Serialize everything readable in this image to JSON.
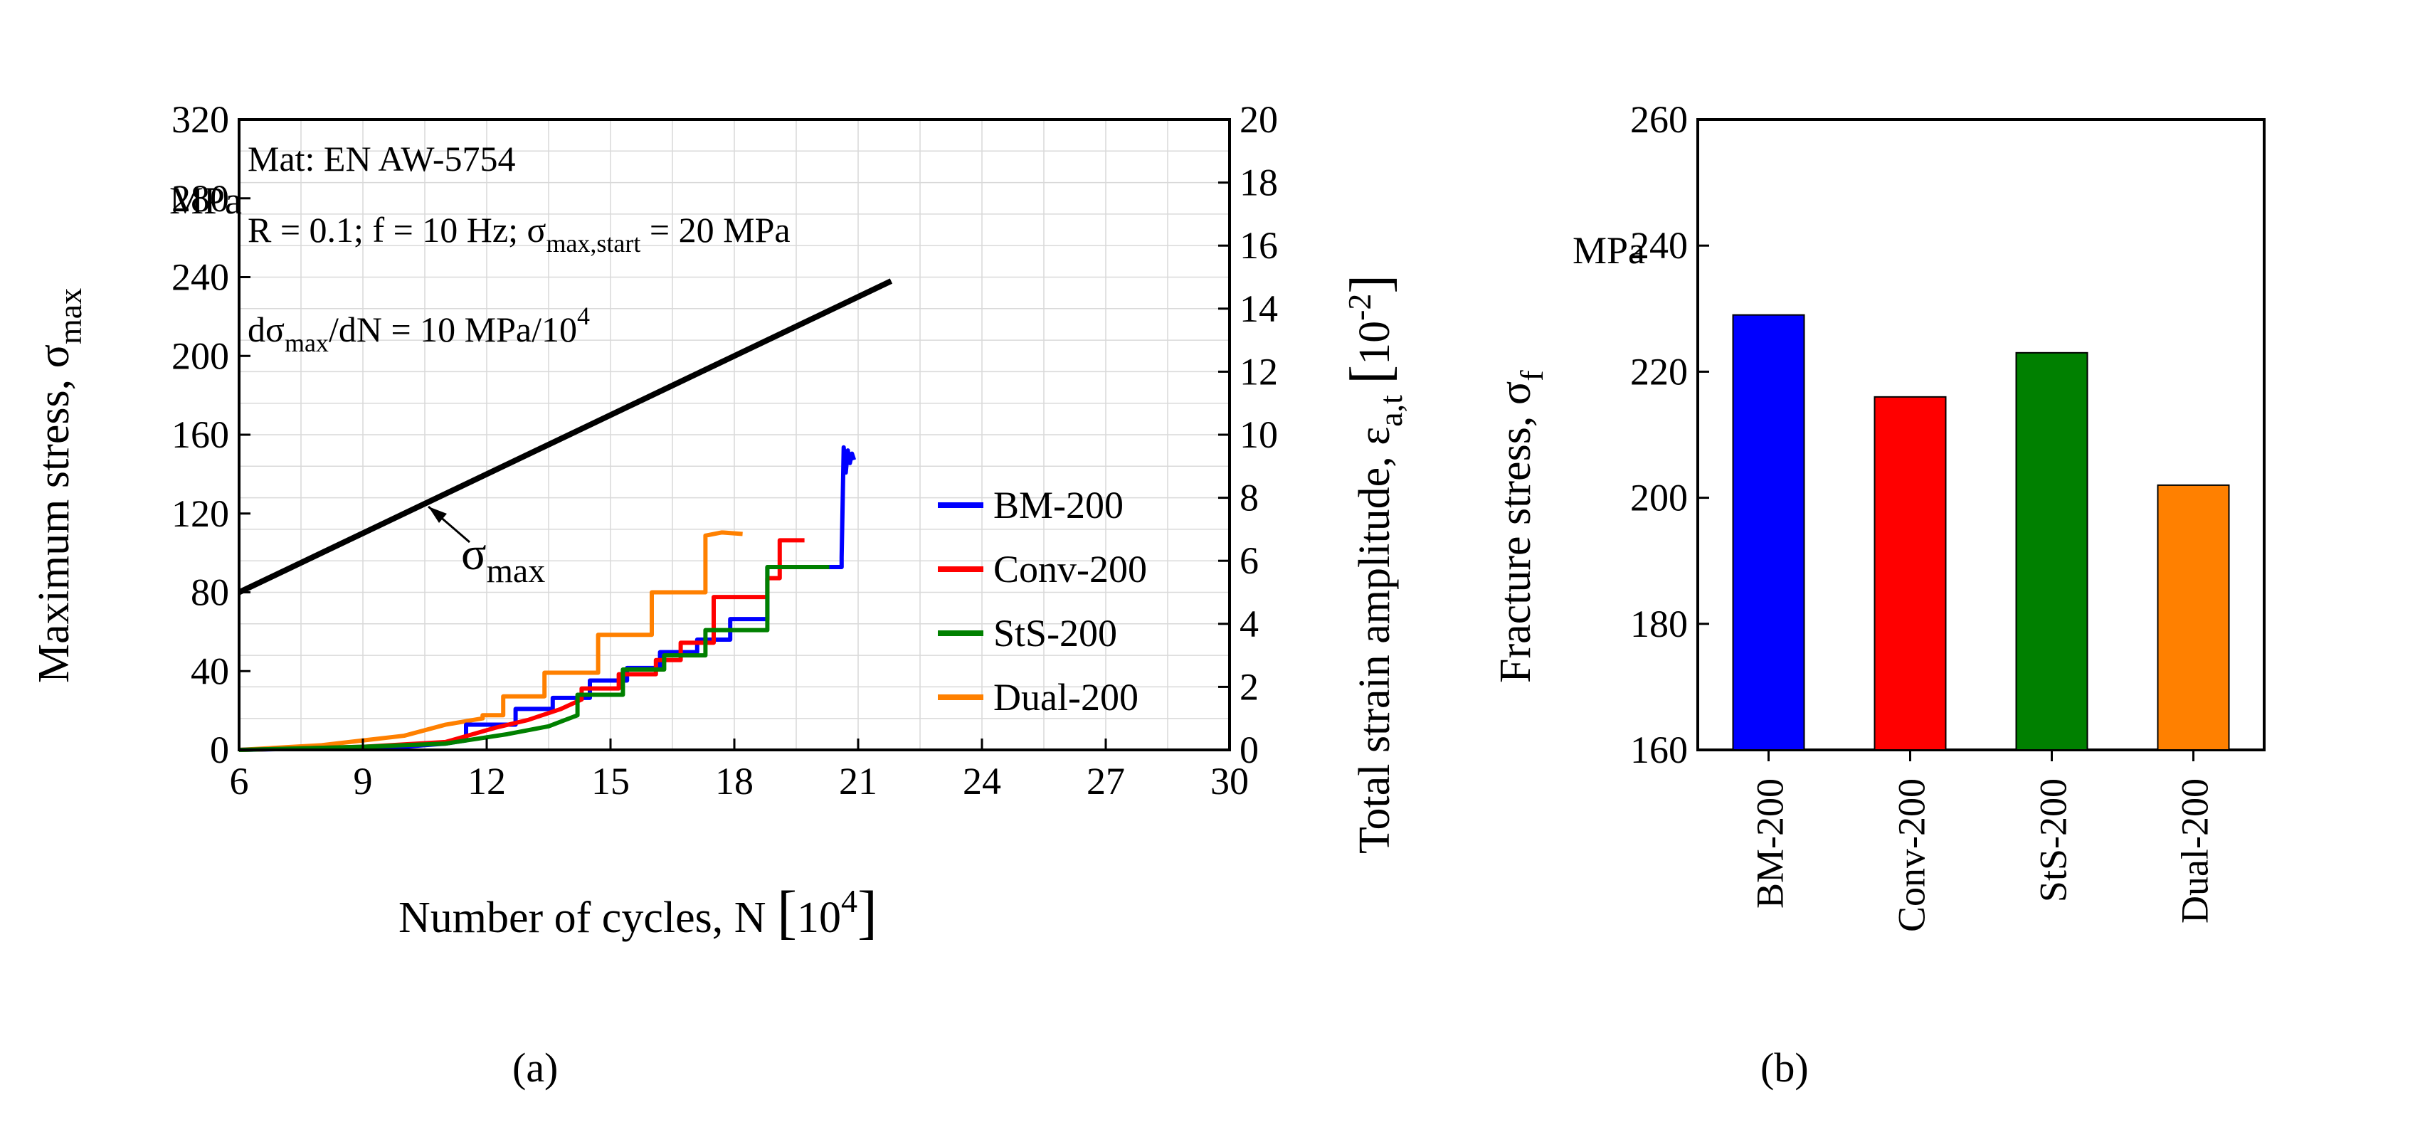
{
  "chart_data": [
    {
      "type": "line",
      "panel": "a",
      "panel_label": "(a)",
      "title": "",
      "xlabel": "Number of cycles, N [10^4]",
      "ylabel_left": "Maximum stress, σmax",
      "ylabel_left_unit": "MPa",
      "ylabel_right": "Total strain amplitude, εa,t [10^-2]",
      "grid": true,
      "xlim": [
        6,
        30
      ],
      "ylim_left": [
        0,
        320
      ],
      "ylim_right": [
        0,
        20
      ],
      "xticks": [
        "6",
        "9",
        "12",
        "15",
        "18",
        "21",
        "24",
        "27",
        "30"
      ],
      "yticks_left": [
        "0",
        "40",
        "80",
        "120",
        "160",
        "200",
        "240",
        "280",
        "320"
      ],
      "yticks_right": [
        "0",
        "2",
        "4",
        "6",
        "8",
        "10",
        "12",
        "14",
        "16",
        "18",
        "20"
      ],
      "annotations": {
        "material": "Mat: EN AW-5754",
        "params_prefix": "R = 0.1; f = 10 Hz; ",
        "sigma": "σ",
        "sub_max_start": "max,start",
        "params_suffix": " = 20 MPa",
        "rate_d": "dσ",
        "sub_max": "max",
        "rate_mid": "/dN = 10 MPa/10",
        "rate_exp": "4",
        "curve_label": "σ",
        "curve_label_sub": "max"
      },
      "axis_text": {
        "yl_main": "Maximum stress, σ",
        "yl_sub": "max",
        "unit": "MPa",
        "x_main": "Number of cycles, N ",
        "x_10": "10",
        "x_exp": "4",
        "yr_main": "Total strain amplitude, ε",
        "yr_sub": "a,t",
        "yr_10": "10",
        "yr_exp": "-2"
      },
      "sigma_max_line": {
        "name": "σmax",
        "axis": "left",
        "x": [
          6,
          21.8
        ],
        "y": [
          80,
          238
        ],
        "color": "#000000"
      },
      "series": [
        {
          "name": "BM-200",
          "axis": "right",
          "color": "#0000ff",
          "x": [
            6,
            8,
            10,
            11,
            11.5,
            11.5,
            12.7,
            12.7,
            13.6,
            13.6,
            14.5,
            14.5,
            15.4,
            15.4,
            16.2,
            16.2,
            17.1,
            17.1,
            17.9,
            17.9,
            18.8,
            18.8,
            20.6,
            20.6,
            20.65,
            20.7,
            20.75,
            20.8,
            20.85,
            20.9
          ],
          "y": [
            0,
            0.05,
            0.1,
            0.2,
            0.3,
            0.8,
            0.8,
            1.3,
            1.3,
            1.65,
            1.65,
            2.2,
            2.2,
            2.6,
            2.6,
            3.1,
            3.1,
            3.5,
            3.5,
            4.15,
            4.15,
            5.8,
            5.8,
            6.1,
            9.6,
            8.8,
            9.5,
            9.1,
            9.4,
            9.2
          ]
        },
        {
          "name": "Conv-200",
          "axis": "right",
          "color": "#ff0000",
          "x": [
            6,
            9,
            11,
            12.2,
            13,
            13.8,
            14.3,
            14.3,
            15.2,
            15.2,
            16.1,
            16.1,
            16.7,
            16.7,
            17.5,
            17.5,
            18.8,
            18.8,
            19.1,
            19.1,
            19.7
          ],
          "y": [
            0,
            0.1,
            0.25,
            0.7,
            0.95,
            1.3,
            1.6,
            1.95,
            1.95,
            2.4,
            2.4,
            2.85,
            2.85,
            3.4,
            3.4,
            4.85,
            4.85,
            5.45,
            5.45,
            6.65,
            6.65
          ]
        },
        {
          "name": "StS-200",
          "axis": "right",
          "color": "#008000",
          "x": [
            6,
            9,
            11,
            12.5,
            13.5,
            14.2,
            14.2,
            15.3,
            15.3,
            16.3,
            16.3,
            17.3,
            17.3,
            18.8,
            18.8,
            20.3
          ],
          "y": [
            0,
            0.1,
            0.2,
            0.5,
            0.75,
            1.1,
            1.75,
            1.75,
            2.55,
            2.55,
            3.0,
            3.0,
            3.8,
            3.8,
            5.8,
            5.8
          ]
        },
        {
          "name": "Dual-200",
          "axis": "right",
          "color": "#ff8000",
          "x": [
            6,
            8,
            10,
            11,
            11.9,
            11.9,
            12.4,
            12.4,
            13.4,
            13.4,
            14.7,
            14.7,
            16.0,
            16.0,
            17.3,
            17.3,
            17.7,
            18.2
          ],
          "y": [
            0,
            0.15,
            0.45,
            0.8,
            1.0,
            1.1,
            1.1,
            1.7,
            1.7,
            2.45,
            2.45,
            3.65,
            3.65,
            5.0,
            5.0,
            6.8,
            6.9,
            6.85
          ]
        }
      ]
    },
    {
      "type": "bar",
      "panel": "b",
      "panel_label": "(b)",
      "ylabel": "Fracture stress, σf",
      "ylabel_main": "Fracture stress, σ",
      "ylabel_sub": "f",
      "ylabel_unit": "MPa",
      "ylim": [
        160,
        260
      ],
      "yticks": [
        "160",
        "180",
        "200",
        "220",
        "240",
        "260"
      ],
      "categories": [
        "BM-200",
        "Conv-200",
        "StS-200",
        "Dual-200"
      ],
      "values": [
        229,
        216,
        223,
        202
      ],
      "colors": [
        "#0000ff",
        "#ff0000",
        "#008000",
        "#ff8000"
      ]
    }
  ]
}
